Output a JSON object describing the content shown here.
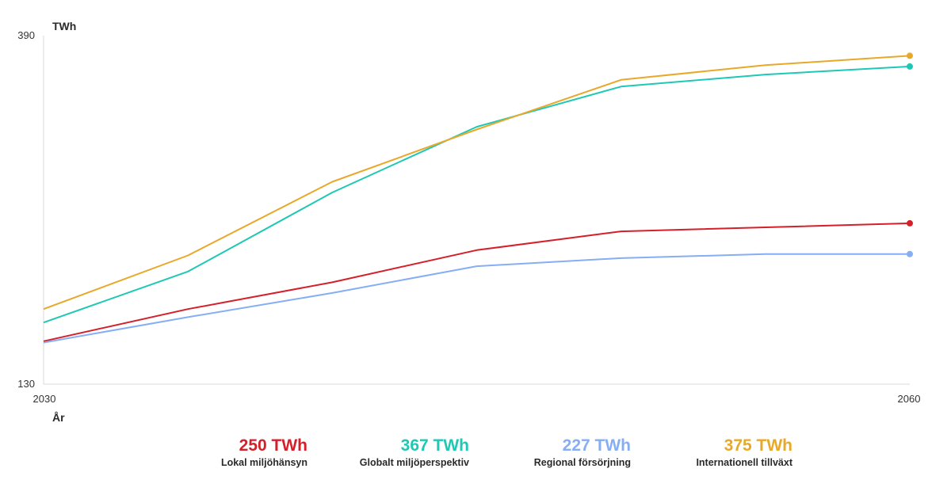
{
  "chart_data": {
    "type": "line",
    "ylabel": "TWh",
    "xlabel": "År",
    "x": [
      2030,
      2035,
      2040,
      2045,
      2050,
      2055,
      2060
    ],
    "xlim": [
      2030,
      2060
    ],
    "ylim": [
      130,
      390
    ],
    "x_ticks": [
      "2030",
      "2060"
    ],
    "y_ticks": [
      "390",
      "130"
    ],
    "grid": false,
    "series": [
      {
        "name": "Lokal miljöhänsyn",
        "color": "#d4202a",
        "values": [
          162,
          186,
          206,
          230,
          244,
          247,
          250
        ],
        "end_label": "250 TWh"
      },
      {
        "name": "Globalt miljöperspektiv",
        "color": "#1fc8b4",
        "values": [
          176,
          214,
          273,
          322,
          352,
          361,
          367
        ],
        "end_label": "367 TWh"
      },
      {
        "name": "Regional försörjning",
        "color": "#86aef5",
        "values": [
          161,
          180,
          198,
          218,
          224,
          227,
          227
        ],
        "end_label": "227 TWh"
      },
      {
        "name": "Internationell tillväxt",
        "color": "#e8a82a",
        "values": [
          186,
          226,
          281,
          320,
          357,
          368,
          375
        ],
        "end_label": "375 TWh"
      }
    ]
  }
}
